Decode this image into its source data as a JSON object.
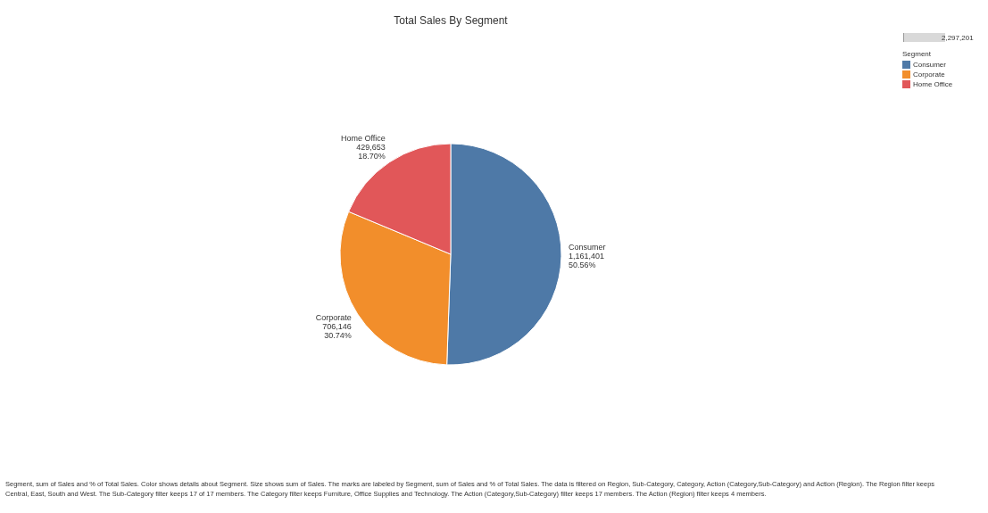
{
  "chart_data": {
    "type": "pie",
    "title": "Total Sales By Segment",
    "legend_title": "Segment",
    "legend": "top right",
    "categories": [
      "Consumer",
      "Corporate",
      "Home Office"
    ],
    "values": [
      1161401,
      706146,
      429653
    ],
    "colors": [
      "#4e79a7",
      "#f28e2b",
      "#e15759"
    ],
    "value_labels": [
      "1,161,401\n50.56%",
      "706,146\n30.74%",
      "429,653\n18.70%"
    ],
    "annotations": [
      "2,297,201",
      "Segment, sum of Sales and % of Total Sales.  Color shows details about Segment.  Size shows sum of Sales.  The marks are labeled by Segment, sum of Sales and % of Total Sales. The data is filtered on Region, Sub-Category, Category, Action (Category,Sub-Category) and Action (Region). The Region filter keeps Central, East, South and West. The Sub-Category filter keeps 17 of 17 members. The Category filter keeps Furniture, Office Supplies and Technology. The Action (Category,Sub-Category) filter keeps 17 members. The Action (Region) filter keeps 4 members."
    ]
  }
}
